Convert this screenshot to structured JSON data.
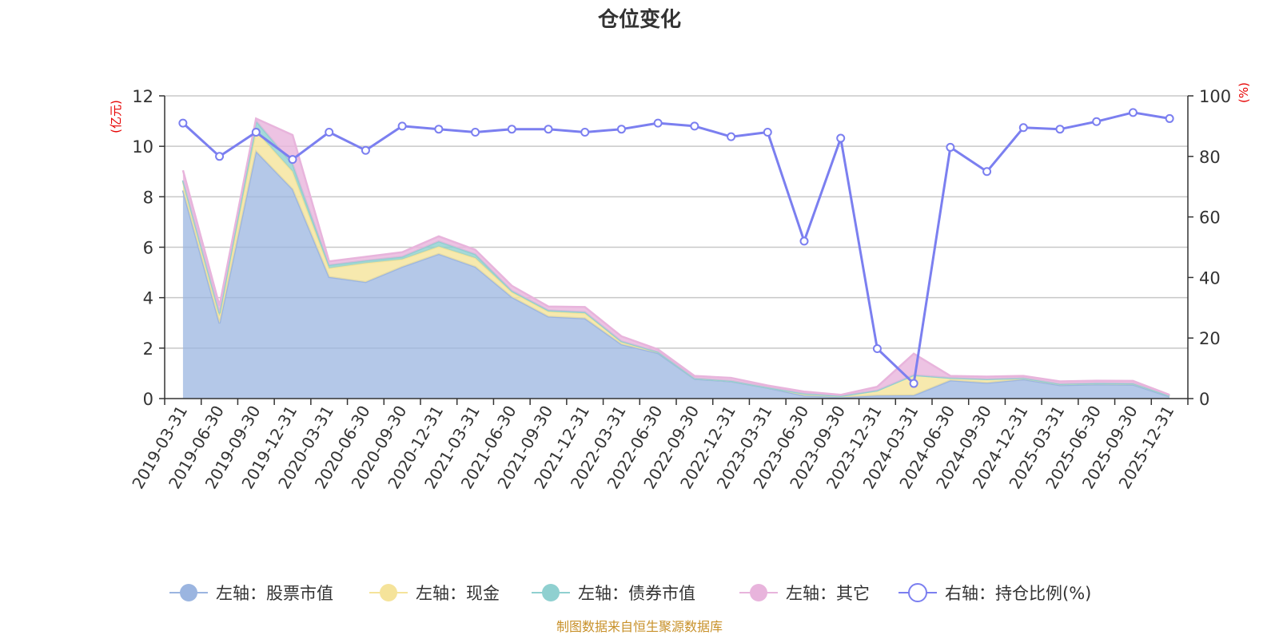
{
  "title": "仓位变化",
  "source": "制图数据来自恒生聚源数据库",
  "chart_data": {
    "type": "area",
    "title": "仓位变化",
    "categories": [
      "2019-03-31",
      "2019-06-30",
      "2019-09-30",
      "2019-12-31",
      "2020-03-31",
      "2020-06-30",
      "2020-09-30",
      "2020-12-31",
      "2021-03-31",
      "2021-06-30",
      "2021-09-30",
      "2021-12-31",
      "2022-03-31",
      "2022-06-30",
      "2022-09-30",
      "2022-12-31",
      "2023-03-31",
      "2023-06-30",
      "2023-09-30",
      "2023-12-31",
      "2024-03-31",
      "2024-06-30",
      "2024-09-30",
      "2024-12-31",
      "2025-03-31",
      "2025-06-30",
      "2025-09-30",
      "2025-12-31"
    ],
    "y_left": {
      "unit": "(亿元)",
      "range": [
        0,
        12
      ],
      "ticks": [
        0,
        2,
        4,
        6,
        8,
        10,
        12
      ]
    },
    "y_right": {
      "unit": "(%)",
      "range": [
        0,
        100
      ],
      "ticks": [
        0,
        20,
        40,
        60,
        80,
        100
      ]
    },
    "grid": true,
    "legend_position": "bottom",
    "series": [
      {
        "name": "左轴：股票市值",
        "axis": "left",
        "stacked": true,
        "color": "#9bb5e0",
        "values": [
          8.25,
          2.98,
          9.8,
          8.3,
          4.82,
          4.62,
          5.22,
          5.73,
          5.22,
          4.02,
          3.25,
          3.18,
          2.15,
          1.8,
          0.78,
          0.68,
          0.42,
          0.12,
          0.05,
          0.12,
          0.13,
          0.72,
          0.62,
          0.76,
          0.53,
          0.56,
          0.55,
          0.08
        ]
      },
      {
        "name": "左轴：现金",
        "axis": "left",
        "stacked": true,
        "color": "#f5e39a",
        "values": [
          0.35,
          0.3,
          0.8,
          0.7,
          0.35,
          0.75,
          0.3,
          0.3,
          0.35,
          0.2,
          0.2,
          0.2,
          0.1,
          0.05,
          0.02,
          0.02,
          0.02,
          0.08,
          0.05,
          0.2,
          0.8,
          0.1,
          0.15,
          0.05,
          0.05,
          0.05,
          0.05,
          0.03
        ]
      },
      {
        "name": "左轴：债券市值",
        "axis": "left",
        "stacked": true,
        "color": "#8fd0d0",
        "values": [
          0.05,
          0.1,
          0.4,
          0.3,
          0.12,
          0.1,
          0.1,
          0.2,
          0.15,
          0.05,
          0.05,
          0.05,
          0.02,
          0.0,
          0.0,
          0.0,
          0.0,
          0.0,
          0.0,
          0.0,
          0.0,
          0.0,
          0.0,
          0.0,
          0.0,
          0.0,
          0.0,
          0.0
        ]
      },
      {
        "name": "左轴：其它",
        "axis": "left",
        "stacked": true,
        "color": "#e8b4dc",
        "values": [
          0.4,
          0.3,
          0.1,
          1.15,
          0.15,
          0.15,
          0.18,
          0.2,
          0.18,
          0.2,
          0.15,
          0.2,
          0.2,
          0.1,
          0.1,
          0.12,
          0.08,
          0.08,
          0.05,
          0.15,
          0.85,
          0.08,
          0.1,
          0.09,
          0.1,
          0.1,
          0.1,
          0.04
        ]
      },
      {
        "name": "右轴：持仓比例(%)",
        "axis": "right",
        "stacked": false,
        "color": "#7b7ff0",
        "values": [
          91,
          80,
          88,
          79,
          88,
          82,
          90,
          89,
          88,
          89,
          89,
          88,
          89,
          91,
          90,
          86.5,
          88,
          52,
          86,
          16.5,
          5,
          83,
          75,
          89.5,
          89,
          91.5,
          94.5,
          92.5
        ]
      }
    ]
  }
}
